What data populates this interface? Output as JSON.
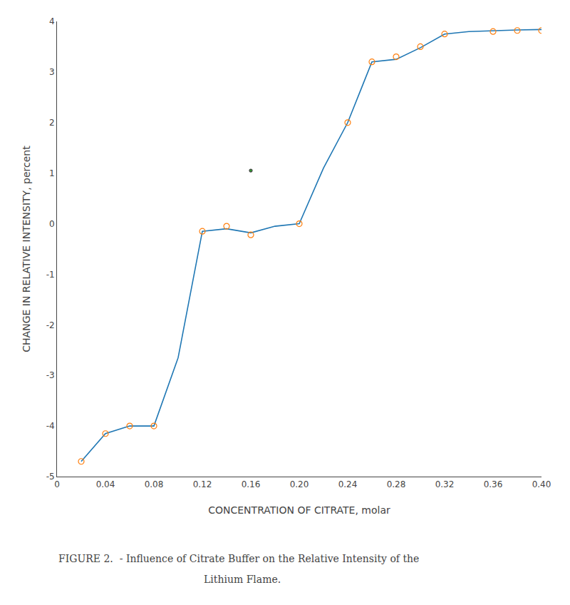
{
  "chart_data": {
    "type": "line",
    "xlabel": "CONCENTRATION OF CITRATE, molar",
    "ylabel": "CHANGE IN RELATIVE INTENSITY, percent",
    "annotations": [
      "FIGURE 2.  - Influence of Citrate Buffer on the Relative Intensity of the",
      "Lithium Flame."
    ],
    "series": [
      {
        "type": "line",
        "line_style": "solid",
        "x": [
          0.02,
          0.04,
          0.06,
          0.08,
          0.1,
          0.12,
          0.14,
          0.16,
          0.18,
          0.2,
          0.22,
          0.24,
          0.26,
          0.28,
          0.3,
          0.32,
          0.34,
          0.36,
          0.38,
          0.4
        ],
        "values": [
          -4.7,
          -4.15,
          -4.0,
          -4.0,
          -2.65,
          -0.15,
          -0.1,
          -0.18,
          -0.05,
          0.0,
          1.1,
          2.0,
          3.2,
          3.25,
          3.48,
          3.75,
          3.8,
          3.82,
          3.83,
          3.84
        ]
      },
      {
        "type": "scatter",
        "marker": "circle-open",
        "x": [
          0.02,
          0.04,
          0.06,
          0.08,
          0.12,
          0.14,
          0.16,
          0.2,
          0.24,
          0.26,
          0.28,
          0.3,
          0.32,
          0.36,
          0.38,
          0.4
        ],
        "values": [
          -4.7,
          -4.15,
          -4.0,
          -4.0,
          -0.15,
          -0.05,
          -0.22,
          0.0,
          2.0,
          3.2,
          3.3,
          3.5,
          3.75,
          3.8,
          3.82,
          3.82
        ]
      },
      {
        "type": "scatter",
        "marker": "circle",
        "x": [
          0.16
        ],
        "values": [
          1.05
        ]
      }
    ],
    "xlim": [
      0,
      0.4
    ],
    "ylim": [
      -5,
      4
    ],
    "xticks": [
      0,
      0.04,
      0.08,
      0.12,
      0.16,
      {
        "value": 0.2,
        "label": "0.20"
      },
      0.24,
      0.28,
      0.32,
      0.36,
      {
        "value": 0.4,
        "label": "0.40"
      }
    ],
    "yticks": [
      -5,
      -4,
      -3,
      -2,
      -1,
      0,
      1,
      2,
      3,
      4
    ],
    "grid": false
  }
}
